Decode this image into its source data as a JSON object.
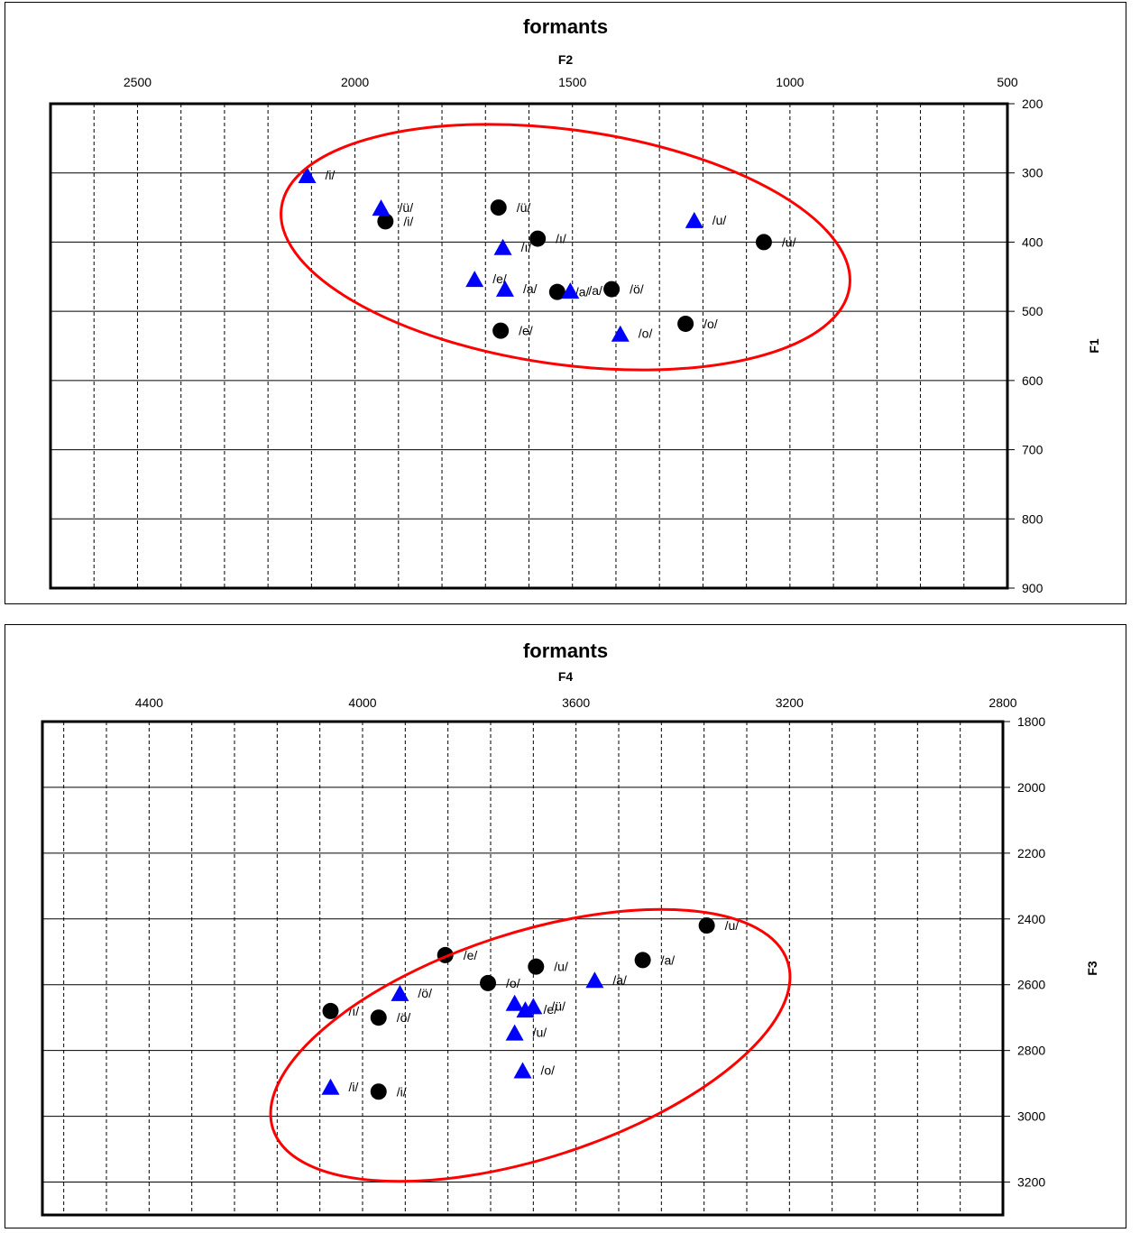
{
  "chart_data": [
    {
      "type": "scatter",
      "title": "formants",
      "xlabel": "F2",
      "ylabel": "F1",
      "x_reversed": true,
      "y_reversed": true,
      "x_axis_position": "top",
      "y_axis_position": "right",
      "xlim": [
        2700,
        500
      ],
      "ylim": [
        200,
        900
      ],
      "xticks": [
        "2500",
        "2000",
        "1500",
        "1000",
        "500"
      ],
      "yticks": [
        "200",
        "300",
        "400",
        "500",
        "600",
        "700",
        "800",
        "900"
      ],
      "grid": true,
      "series": [
        {
          "marker": "circle",
          "color": "#000000",
          "points": [
            {
              "x": 1930,
              "y": 370,
              "label": "/i/"
            },
            {
              "x": 1670,
              "y": 350,
              "label": "/ü/"
            },
            {
              "x": 1580,
              "y": 395,
              "label": "/ı/"
            },
            {
              "x": 1060,
              "y": 400,
              "label": "/u/"
            },
            {
              "x": 1535,
              "y": 472,
              "label": "/a/"
            },
            {
              "x": 1410,
              "y": 468,
              "label": "/ö/"
            },
            {
              "x": 1665,
              "y": 528,
              "label": "/e/"
            },
            {
              "x": 1240,
              "y": 518,
              "label": "/o/"
            }
          ]
        },
        {
          "marker": "triangle",
          "color": "#0000ff",
          "points": [
            {
              "x": 2110,
              "y": 303,
              "label": "/i/"
            },
            {
              "x": 1940,
              "y": 350,
              "label": "/ü/"
            },
            {
              "x": 1220,
              "y": 368,
              "label": "/u/"
            },
            {
              "x": 1660,
              "y": 407,
              "label": "/ı/"
            },
            {
              "x": 1725,
              "y": 453,
              "label": "/e/"
            },
            {
              "x": 1655,
              "y": 467,
              "label": "/a/"
            },
            {
              "x": 1505,
              "y": 470,
              "label": "/a/"
            },
            {
              "x": 1390,
              "y": 532,
              "label": "/o/"
            }
          ]
        }
      ],
      "annotations": [
        {
          "shape": "ellipse",
          "color": "#ff0000"
        }
      ]
    },
    {
      "type": "scatter",
      "title": "formants",
      "xlabel": "F4",
      "ylabel": "F3",
      "x_reversed": true,
      "y_reversed": true,
      "x_axis_position": "top",
      "y_axis_position": "right",
      "xlim": [
        4600,
        2800
      ],
      "ylim": [
        1800,
        3300
      ],
      "xticks": [
        "4400",
        "4000",
        "3600",
        "3200",
        "2800"
      ],
      "yticks": [
        "1800",
        "2000",
        "2200",
        "2400",
        "2600",
        "2800",
        "3000",
        "3200"
      ],
      "grid": true,
      "series": [
        {
          "marker": "circle",
          "color": "#000000",
          "points": [
            {
              "x": 3355,
              "y": 2420,
              "label": "/u/"
            },
            {
              "x": 3845,
              "y": 2510,
              "label": "/e/"
            },
            {
              "x": 3475,
              "y": 2525,
              "label": "/a/"
            },
            {
              "x": 3675,
              "y": 2545,
              "label": "/u/"
            },
            {
              "x": 3765,
              "y": 2595,
              "label": "/o/"
            },
            {
              "x": 4060,
              "y": 2680,
              "label": "/ı/"
            },
            {
              "x": 3970,
              "y": 2700,
              "label": "/ö/"
            },
            {
              "x": 3970,
              "y": 2925,
              "label": "/i/"
            }
          ]
        },
        {
          "marker": "triangle",
          "color": "#0000ff",
          "points": [
            {
              "x": 3565,
              "y": 2585,
              "label": "/a/"
            },
            {
              "x": 3930,
              "y": 2625,
              "label": "/ö/"
            },
            {
              "x": 3715,
              "y": 2655,
              "label": ""
            },
            {
              "x": 3680,
              "y": 2665,
              "label": "/ü/"
            },
            {
              "x": 3695,
              "y": 2675,
              "label": "/e/"
            },
            {
              "x": 3715,
              "y": 2745,
              "label": "/u/"
            },
            {
              "x": 3700,
              "y": 2860,
              "label": "/o/"
            },
            {
              "x": 4060,
              "y": 2910,
              "label": "/i/"
            }
          ]
        }
      ],
      "annotations": [
        {
          "shape": "ellipse",
          "color": "#ff0000"
        }
      ]
    }
  ]
}
